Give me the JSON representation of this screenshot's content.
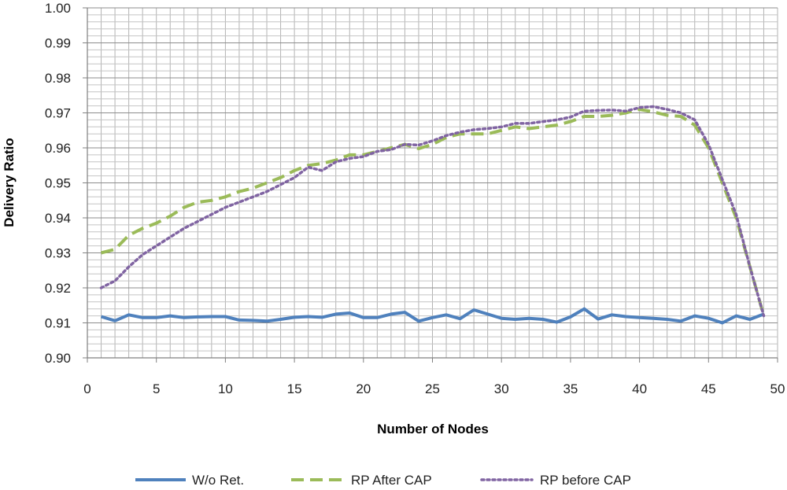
{
  "chart_data": {
    "type": "line",
    "title": "",
    "xlabel": "Number of Nodes",
    "ylabel": "Delivery Ratio",
    "xlim": [
      0,
      50
    ],
    "ylim": [
      0.9,
      1.0
    ],
    "x_ticks": [
      0,
      5,
      10,
      15,
      20,
      25,
      30,
      35,
      40,
      45,
      50
    ],
    "x_tick_labels": [
      "0",
      "5",
      "10",
      "15",
      "20",
      "25",
      "30",
      "35",
      "40",
      "45",
      "50"
    ],
    "y_ticks": [
      0.9,
      0.91,
      0.92,
      0.93,
      0.94,
      0.95,
      0.96,
      0.97,
      0.98,
      0.99,
      1.0
    ],
    "y_tick_labels": [
      "0.90",
      "0.91",
      "0.92",
      "0.93",
      "0.94",
      "0.95",
      "0.96",
      "0.97",
      "0.98",
      "0.99",
      "1.00"
    ],
    "grid": true,
    "legend_position": "bottom",
    "x": [
      1,
      2,
      3,
      4,
      5,
      6,
      7,
      8,
      9,
      10,
      11,
      12,
      13,
      14,
      15,
      16,
      17,
      18,
      19,
      20,
      21,
      22,
      23,
      24,
      25,
      26,
      27,
      28,
      29,
      30,
      31,
      32,
      33,
      34,
      35,
      36,
      37,
      38,
      39,
      40,
      41,
      42,
      43,
      44,
      45,
      46,
      47,
      48,
      49
    ],
    "series": [
      {
        "name": "W/o Ret.",
        "color": "#4f81bd",
        "style": "solid",
        "values": [
          0.9118,
          0.9106,
          0.9123,
          0.9115,
          0.9115,
          0.912,
          0.9115,
          0.9117,
          0.9118,
          0.9118,
          0.9108,
          0.9107,
          0.9105,
          0.911,
          0.9116,
          0.9118,
          0.9116,
          0.9125,
          0.9128,
          0.9115,
          0.9115,
          0.9125,
          0.913,
          0.9105,
          0.9115,
          0.9123,
          0.9112,
          0.9137,
          0.9125,
          0.9113,
          0.911,
          0.9113,
          0.911,
          0.9102,
          0.9117,
          0.914,
          0.9111,
          0.9123,
          0.9118,
          0.9115,
          0.9113,
          0.911,
          0.9105,
          0.912,
          0.9113,
          0.91,
          0.912,
          0.911,
          0.9125
        ]
      },
      {
        "name": "RP After CAP",
        "color": "#9bbb59",
        "style": "dashed",
        "values": [
          0.93,
          0.931,
          0.935,
          0.937,
          0.9385,
          0.9405,
          0.943,
          0.9445,
          0.945,
          0.946,
          0.9475,
          0.9485,
          0.95,
          0.9515,
          0.9535,
          0.955,
          0.9555,
          0.9565,
          0.958,
          0.958,
          0.959,
          0.96,
          0.961,
          0.9598,
          0.961,
          0.963,
          0.964,
          0.964,
          0.964,
          0.965,
          0.966,
          0.9655,
          0.966,
          0.9665,
          0.9675,
          0.969,
          0.969,
          0.9693,
          0.97,
          0.971,
          0.9703,
          0.9693,
          0.969,
          0.9665,
          0.96,
          0.95,
          0.94,
          0.926,
          0.912
        ]
      },
      {
        "name": "RP before CAP",
        "color": "#8064a2",
        "style": "dotted",
        "values": [
          0.92,
          0.922,
          0.926,
          0.9295,
          0.932,
          0.9345,
          0.937,
          0.939,
          0.941,
          0.943,
          0.9445,
          0.946,
          0.9475,
          0.9495,
          0.9515,
          0.9545,
          0.9535,
          0.956,
          0.957,
          0.9575,
          0.959,
          0.9595,
          0.961,
          0.9608,
          0.962,
          0.9635,
          0.9645,
          0.9652,
          0.9655,
          0.966,
          0.967,
          0.967,
          0.9675,
          0.968,
          0.9688,
          0.9705,
          0.9707,
          0.9708,
          0.9705,
          0.9715,
          0.9718,
          0.971,
          0.97,
          0.968,
          0.961,
          0.951,
          0.941,
          0.926,
          0.912
        ]
      }
    ]
  }
}
